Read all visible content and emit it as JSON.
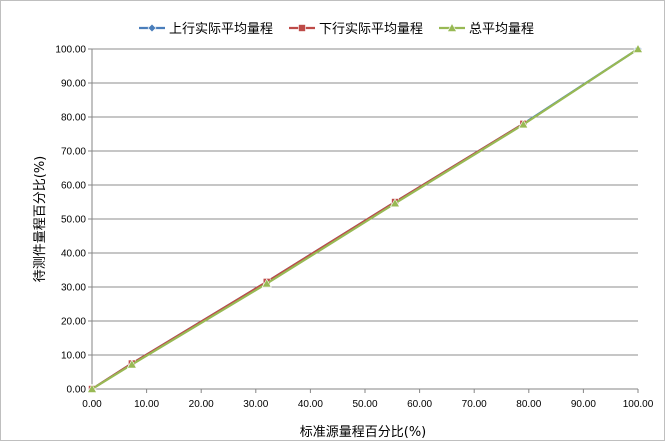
{
  "chart_data": {
    "type": "line",
    "xlabel": "标准源量程百分比(%)",
    "ylabel": "待测件量程百分比(%)",
    "xlim": [
      0,
      100
    ],
    "ylim": [
      0,
      100
    ],
    "x_ticks": [
      "0.00",
      "10.00",
      "20.00",
      "30.00",
      "40.00",
      "50.00",
      "60.00",
      "70.00",
      "80.00",
      "90.00",
      "100.00"
    ],
    "y_ticks": [
      "0.00",
      "10.00",
      "20.00",
      "30.00",
      "40.00",
      "50.00",
      "60.00",
      "70.00",
      "80.00",
      "90.00",
      "100.00"
    ],
    "grid": "horizontal",
    "legend": "top",
    "series": [
      {
        "name": "上行实际平均量程",
        "color": "#4a7ebb",
        "marker": "diamond",
        "points": [
          [
            0,
            0
          ],
          [
            7.3,
            7.5
          ],
          [
            32,
            31.5
          ],
          [
            55.5,
            55
          ],
          [
            79,
            78
          ],
          [
            100,
            100
          ]
        ]
      },
      {
        "name": "下行实际平均量程",
        "color": "#be4b48",
        "marker": "square",
        "points": [
          [
            0,
            0
          ],
          [
            7.3,
            7.5
          ],
          [
            32,
            31.5
          ],
          [
            55.5,
            55
          ],
          [
            79,
            78
          ]
        ]
      },
      {
        "name": "总平均量程",
        "color": "#98b954",
        "marker": "triangle",
        "points": [
          [
            0,
            0
          ],
          [
            7.3,
            7.2
          ],
          [
            32,
            31
          ],
          [
            55.5,
            54.6
          ],
          [
            79,
            77.8
          ],
          [
            100,
            100
          ]
        ]
      }
    ]
  }
}
